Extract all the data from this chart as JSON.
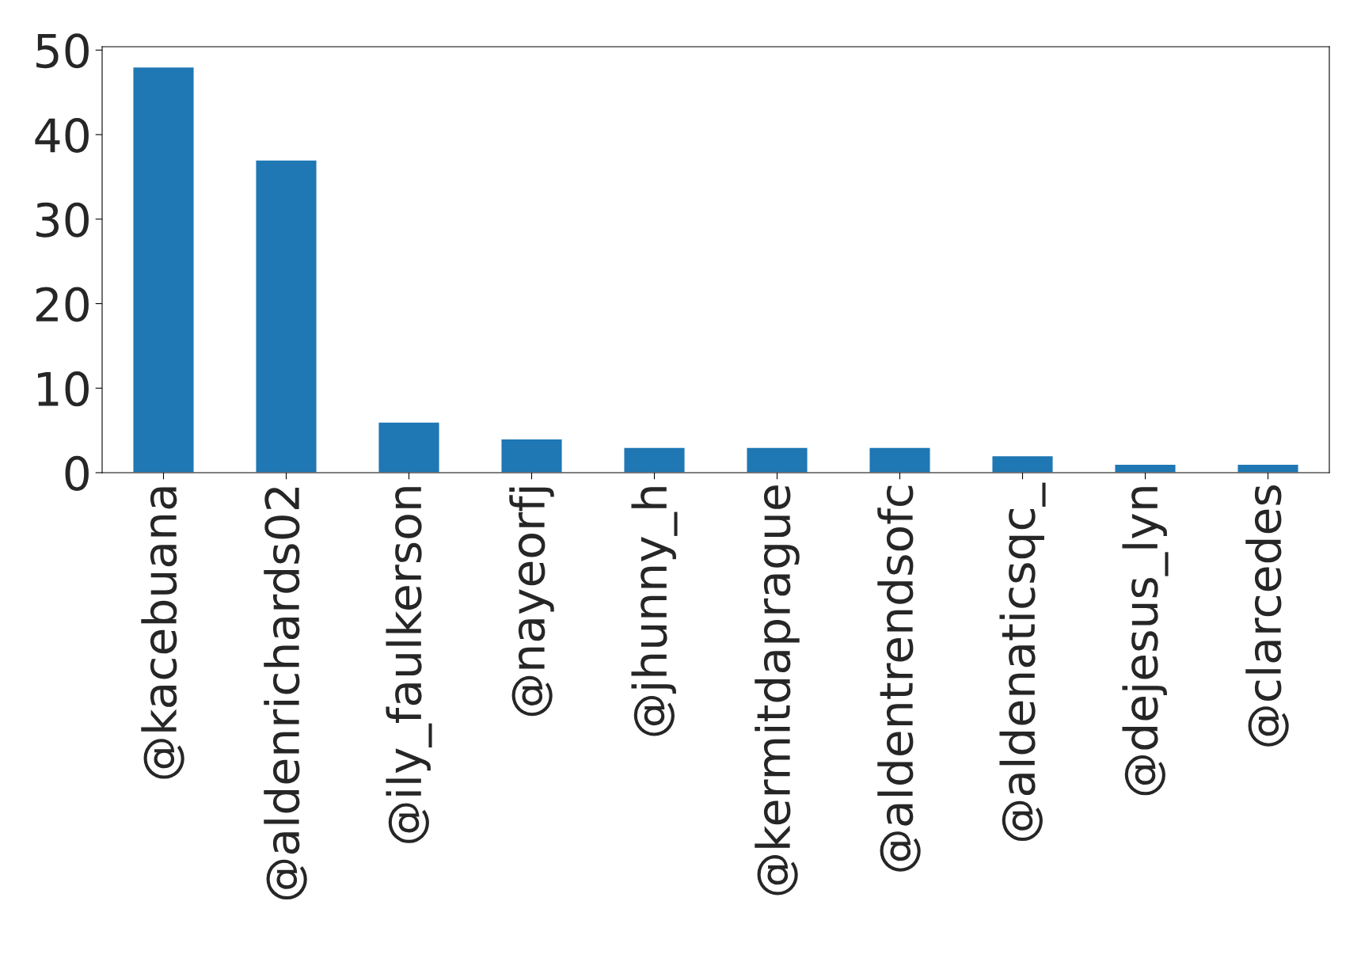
{
  "chart_data": {
    "type": "bar",
    "categories": [
      "@kacebuana",
      "@aldenrichards02",
      "@ily_faulkerson",
      "@nayeorfj",
      "@jhunny_h",
      "@kermitdaprague",
      "@aldentrendsofc",
      "@aldenaticsqc_",
      "@dejesus_lyn",
      "@clarcedes"
    ],
    "values": [
      48,
      37,
      6,
      4,
      3,
      3,
      3,
      2,
      1,
      1
    ],
    "color": "#1f77b4",
    "ylim": [
      0,
      50.4
    ],
    "yticks": [
      0,
      10,
      20,
      30,
      40,
      50
    ],
    "grid": false
  }
}
